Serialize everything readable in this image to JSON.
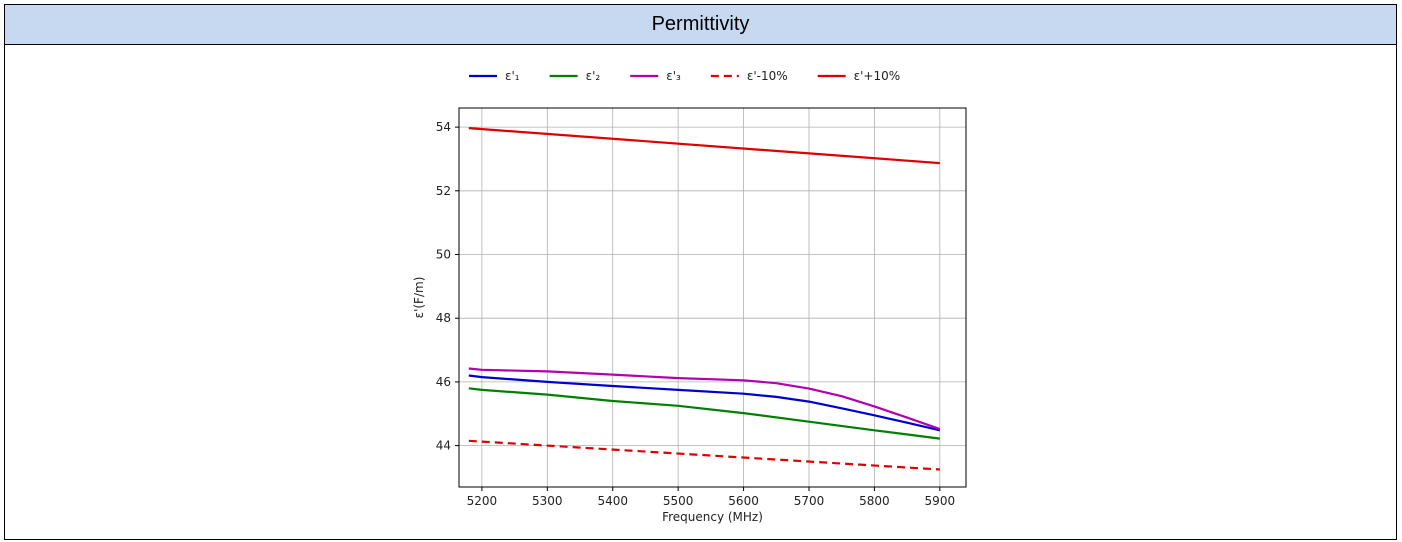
{
  "header": {
    "title": "Permittivity"
  },
  "chart_data": {
    "type": "line",
    "xlabel": "Frequency (MHz)",
    "ylabel": "ε'(F/m)",
    "xlim": [
      5165,
      5940
    ],
    "ylim": [
      42.7,
      54.6
    ],
    "xticks": [
      5200,
      5300,
      5400,
      5500,
      5600,
      5700,
      5800,
      5900
    ],
    "yticks": [
      44,
      46,
      48,
      50,
      52,
      54
    ],
    "grid": true,
    "legend_position": "top",
    "series": [
      {
        "name": "ε'₁",
        "color": "#0000cc",
        "dash": "solid",
        "x": [
          5180,
          5200,
          5300,
          5400,
          5500,
          5600,
          5650,
          5700,
          5750,
          5800,
          5850,
          5900
        ],
        "y": [
          46.2,
          46.15,
          46.0,
          45.87,
          45.75,
          45.63,
          45.53,
          45.38,
          45.17,
          44.95,
          44.72,
          44.48
        ]
      },
      {
        "name": "ε'₂",
        "color": "#008000",
        "dash": "solid",
        "x": [
          5180,
          5200,
          5300,
          5400,
          5500,
          5600,
          5700,
          5800,
          5900
        ],
        "y": [
          45.8,
          45.75,
          45.6,
          45.4,
          45.25,
          45.02,
          44.75,
          44.48,
          44.22
        ]
      },
      {
        "name": "ε'₃",
        "color": "#b000b0",
        "dash": "solid",
        "x": [
          5180,
          5200,
          5300,
          5400,
          5500,
          5600,
          5650,
          5700,
          5750,
          5800,
          5850,
          5900
        ],
        "y": [
          46.42,
          46.38,
          46.33,
          46.23,
          46.12,
          46.05,
          45.96,
          45.79,
          45.55,
          45.23,
          44.88,
          44.52
        ]
      },
      {
        "name": "ε'-10%",
        "color": "#dd0000",
        "dash": "dashed",
        "x": [
          5180,
          5900
        ],
        "y": [
          44.15,
          43.25
        ]
      },
      {
        "name": "ε'+10%",
        "color": "#dd0000",
        "dash": "solid",
        "x": [
          5180,
          5900
        ],
        "y": [
          53.97,
          52.87
        ]
      }
    ]
  }
}
